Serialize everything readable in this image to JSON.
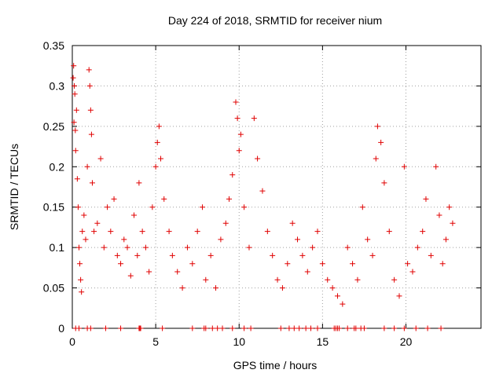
{
  "chart_data": {
    "type": "scatter",
    "title": "Day 224 of 2018, SRMTID for receiver nium",
    "xlabel": "GPS time / hours",
    "ylabel": "SRMTID / TECUs",
    "xlim": [
      0,
      24.5
    ],
    "ylim": [
      0,
      0.35
    ],
    "xticks": [
      0,
      5,
      10,
      15,
      20
    ],
    "xtick_labels": [
      "0",
      "5",
      "10",
      "15",
      "20"
    ],
    "yticks": [
      0,
      0.05,
      0.1,
      0.15,
      0.2,
      0.25,
      0.3,
      0.35
    ],
    "ytick_labels": [
      "0",
      "0.05",
      "0.1",
      "0.15",
      "0.2",
      "0.25",
      "0.3",
      "0.35"
    ],
    "grid": true,
    "marker": "+",
    "color": "#e00000",
    "series": [
      {
        "name": "SRMTID",
        "points": [
          [
            0.05,
            0.31
          ],
          [
            0.08,
            0.325
          ],
          [
            0.12,
            0.3
          ],
          [
            0.15,
            0.29
          ],
          [
            0.1,
            0.255
          ],
          [
            0.18,
            0.245
          ],
          [
            0.2,
            0.22
          ],
          [
            0.25,
            0.27
          ],
          [
            0.3,
            0.185
          ],
          [
            0.35,
            0.15
          ],
          [
            0.4,
            0.1
          ],
          [
            0.45,
            0.08
          ],
          [
            0.5,
            0.06
          ],
          [
            0.55,
            0.045
          ],
          [
            0.6,
            0.12
          ],
          [
            0.7,
            0.14
          ],
          [
            0.8,
            0.11
          ],
          [
            0.9,
            0.2
          ],
          [
            1.0,
            0.32
          ],
          [
            1.05,
            0.3
          ],
          [
            1.1,
            0.27
          ],
          [
            1.15,
            0.24
          ],
          [
            1.2,
            0.18
          ],
          [
            1.3,
            0.12
          ],
          [
            1.5,
            0.13
          ],
          [
            1.7,
            0.21
          ],
          [
            1.9,
            0.1
          ],
          [
            2.1,
            0.15
          ],
          [
            2.3,
            0.12
          ],
          [
            2.5,
            0.16
          ],
          [
            2.7,
            0.09
          ],
          [
            2.9,
            0.08
          ],
          [
            3.1,
            0.11
          ],
          [
            3.3,
            0.1
          ],
          [
            3.5,
            0.065
          ],
          [
            3.7,
            0.14
          ],
          [
            3.9,
            0.09
          ],
          [
            4.0,
            0.18
          ],
          [
            4.2,
            0.12
          ],
          [
            4.4,
            0.1
          ],
          [
            4.6,
            0.07
          ],
          [
            4.8,
            0.15
          ],
          [
            5.0,
            0.2
          ],
          [
            5.1,
            0.23
          ],
          [
            5.2,
            0.25
          ],
          [
            5.3,
            0.21
          ],
          [
            5.5,
            0.16
          ],
          [
            5.8,
            0.12
          ],
          [
            6.0,
            0.09
          ],
          [
            6.3,
            0.07
          ],
          [
            6.6,
            0.05
          ],
          [
            6.9,
            0.1
          ],
          [
            7.2,
            0.08
          ],
          [
            7.5,
            0.12
          ],
          [
            7.8,
            0.15
          ],
          [
            8.0,
            0.06
          ],
          [
            8.3,
            0.09
          ],
          [
            8.6,
            0.05
          ],
          [
            8.9,
            0.11
          ],
          [
            9.2,
            0.13
          ],
          [
            9.4,
            0.16
          ],
          [
            9.6,
            0.19
          ],
          [
            9.8,
            0.28
          ],
          [
            9.9,
            0.26
          ],
          [
            10.0,
            0.22
          ],
          [
            10.1,
            0.24
          ],
          [
            10.3,
            0.15
          ],
          [
            10.6,
            0.1
          ],
          [
            10.9,
            0.26
          ],
          [
            11.1,
            0.21
          ],
          [
            11.4,
            0.17
          ],
          [
            11.7,
            0.12
          ],
          [
            12.0,
            0.09
          ],
          [
            12.3,
            0.06
          ],
          [
            12.6,
            0.05
          ],
          [
            12.9,
            0.08
          ],
          [
            13.2,
            0.13
          ],
          [
            13.5,
            0.11
          ],
          [
            13.8,
            0.09
          ],
          [
            14.1,
            0.07
          ],
          [
            14.4,
            0.1
          ],
          [
            14.7,
            0.12
          ],
          [
            15.0,
            0.08
          ],
          [
            15.3,
            0.06
          ],
          [
            15.6,
            0.05
          ],
          [
            15.9,
            0.04
          ],
          [
            16.2,
            0.03
          ],
          [
            16.5,
            0.1
          ],
          [
            16.8,
            0.08
          ],
          [
            17.1,
            0.06
          ],
          [
            17.4,
            0.15
          ],
          [
            17.7,
            0.11
          ],
          [
            18.0,
            0.09
          ],
          [
            18.2,
            0.21
          ],
          [
            18.3,
            0.25
          ],
          [
            18.5,
            0.23
          ],
          [
            18.7,
            0.18
          ],
          [
            19.0,
            0.12
          ],
          [
            19.3,
            0.06
          ],
          [
            19.6,
            0.04
          ],
          [
            19.9,
            0.2
          ],
          [
            20.1,
            0.08
          ],
          [
            20.4,
            0.07
          ],
          [
            20.7,
            0.1
          ],
          [
            21.0,
            0.12
          ],
          [
            21.2,
            0.16
          ],
          [
            21.5,
            0.09
          ],
          [
            21.8,
            0.2
          ],
          [
            22.0,
            0.14
          ],
          [
            22.2,
            0.08
          ],
          [
            22.4,
            0.11
          ],
          [
            22.6,
            0.15
          ],
          [
            22.8,
            0.13
          ]
        ]
      }
    ],
    "zero_points_x": [
      0.2,
      0.4,
      0.9,
      1.1,
      2.0,
      2.9,
      4.0,
      4.05,
      4.1,
      5.4,
      7.2,
      7.9,
      8.0,
      8.4,
      8.7,
      9.0,
      9.6,
      10.3,
      10.7,
      12.5,
      13.0,
      13.3,
      13.6,
      14.0,
      14.3,
      14.7,
      15.7,
      15.8,
      15.9,
      16.0,
      16.5,
      16.9,
      17.0,
      17.3,
      17.5,
      18.7,
      19.3,
      19.9,
      20.6,
      21.3,
      22.1
    ]
  }
}
